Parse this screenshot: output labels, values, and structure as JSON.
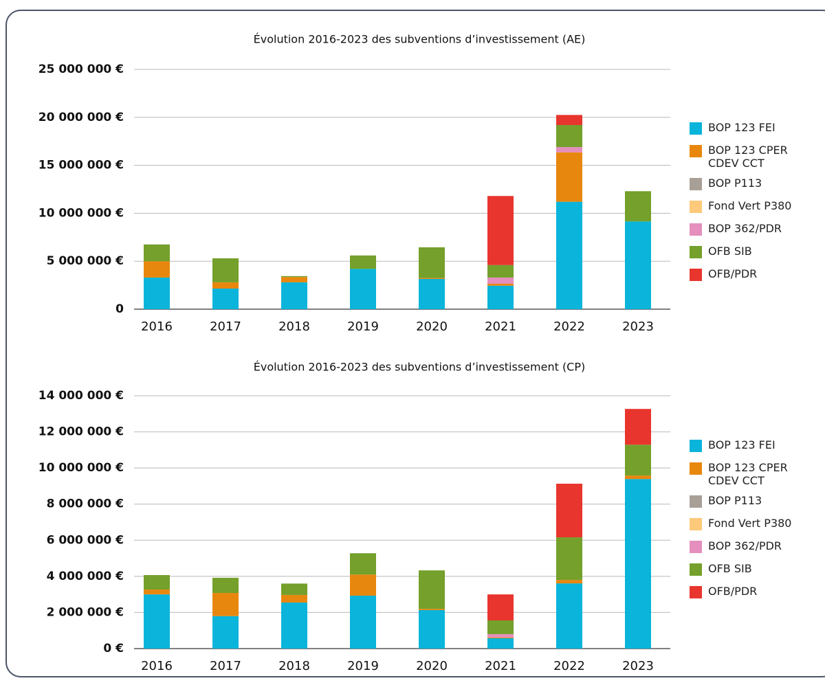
{
  "chart_data": [
    {
      "type": "bar",
      "stacked": true,
      "title": "Évolution 2016-2023 des subventions d’investissement (AE)",
      "categories": [
        "2016",
        "2017",
        "2018",
        "2019",
        "2020",
        "2021",
        "2022",
        "2023"
      ],
      "ylim": [
        0,
        25000000
      ],
      "yticks": [
        0,
        {
          "value": 5000000,
          "label": "5 000 000 €"
        },
        {
          "value": 10000000,
          "label": "10 000 000 €"
        },
        {
          "value": 15000000,
          "label": "15 000 000 €"
        },
        {
          "value": 20000000,
          "label": "20 000 000 €"
        },
        {
          "value": 25000000,
          "label": "25 000 000 €"
        }
      ],
      "grid": true,
      "legend": "right",
      "series": [
        {
          "name": "BOP 123 FEI",
          "color": "#0ab4da",
          "values": [
            3300000,
            2150000,
            2800000,
            4200000,
            3150000,
            2450000,
            11200000,
            9150000
          ]
        },
        {
          "name": "BOP 123 CPER CDEV CCT",
          "color": "#e8870e",
          "values": [
            1700000,
            650000,
            550000,
            0,
            100000,
            200000,
            5150000,
            0
          ]
        },
        {
          "name": "BOP P113",
          "color": "#a89f96",
          "values": [
            0,
            0,
            0,
            0,
            0,
            0,
            0,
            0
          ]
        },
        {
          "name": "Fond Vert P380",
          "color": "#fdc97a",
          "values": [
            0,
            0,
            0,
            0,
            0,
            0,
            0,
            0
          ]
        },
        {
          "name": "BOP 362/PDR",
          "color": "#e48fbd",
          "values": [
            0,
            0,
            0,
            0,
            0,
            650000,
            550000,
            0
          ]
        },
        {
          "name": "OFB SIB",
          "color": "#74a02b",
          "values": [
            1750000,
            2500000,
            100000,
            1400000,
            3200000,
            1300000,
            2300000,
            3150000
          ]
        },
        {
          "name": "OFB/PDR",
          "color": "#e8352d",
          "values": [
            0,
            0,
            0,
            0,
            0,
            7200000,
            1050000,
            0
          ]
        }
      ]
    },
    {
      "type": "bar",
      "stacked": true,
      "title": "Évolution 2016-2023 des subventions d’investissement (CP)",
      "categories": [
        "2016",
        "2017",
        "2018",
        "2019",
        "2020",
        "2021",
        "2022",
        "2023"
      ],
      "ylim": [
        0,
        14000000
      ],
      "yticks": [
        {
          "value": 0,
          "label": "0 €"
        },
        {
          "value": 2000000,
          "label": "2 000 000 €"
        },
        {
          "value": 4000000,
          "label": "4 000 000 €"
        },
        {
          "value": 6000000,
          "label": "6 000 000 €"
        },
        {
          "value": 8000000,
          "label": "8 000 000 €"
        },
        {
          "value": 10000000,
          "label": "10 000 000 €"
        },
        {
          "value": 12000000,
          "label": "12 000 000 €"
        },
        {
          "value": 14000000,
          "label": "14 000 000 €"
        }
      ],
      "grid": true,
      "legend": "right",
      "series": [
        {
          "name": "BOP 123 FEI",
          "color": "#0ab4da",
          "values": [
            3000000,
            1800000,
            2550000,
            2930000,
            2130000,
            570000,
            3610000,
            9390000
          ]
        },
        {
          "name": "BOP 123 CPER CDEV CCT",
          "color": "#e8870e",
          "values": [
            270000,
            1280000,
            420000,
            1170000,
            70000,
            50000,
            190000,
            190000
          ]
        },
        {
          "name": "BOP P113",
          "color": "#a89f96",
          "values": [
            0,
            0,
            0,
            0,
            0,
            0,
            0,
            0
          ]
        },
        {
          "name": "Fond Vert P380",
          "color": "#fdc97a",
          "values": [
            0,
            0,
            0,
            0,
            0,
            0,
            0,
            0
          ]
        },
        {
          "name": "BOP 362/PDR",
          "color": "#e48fbd",
          "values": [
            0,
            0,
            0,
            0,
            0,
            180000,
            0,
            0
          ]
        },
        {
          "name": "OFB SIB",
          "color": "#74a02b",
          "values": [
            800000,
            840000,
            630000,
            1180000,
            2130000,
            760000,
            2360000,
            1710000
          ]
        },
        {
          "name": "OFB/PDR",
          "color": "#e8352d",
          "values": [
            0,
            0,
            0,
            0,
            0,
            1440000,
            2970000,
            1980000
          ]
        }
      ]
    }
  ]
}
